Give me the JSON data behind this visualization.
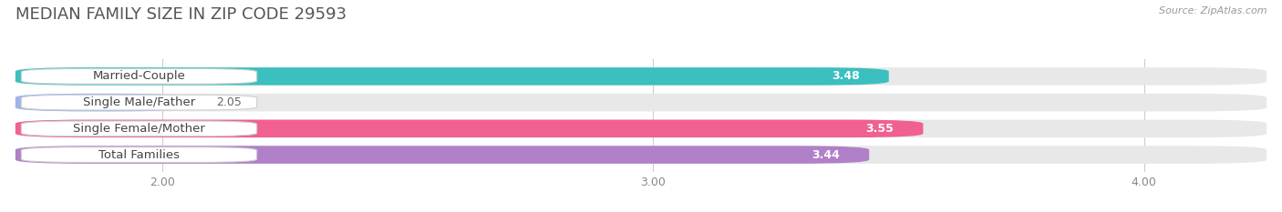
{
  "title": "MEDIAN FAMILY SIZE IN ZIP CODE 29593",
  "source": "Source: ZipAtlas.com",
  "categories": [
    "Married-Couple",
    "Single Male/Father",
    "Single Female/Mother",
    "Total Families"
  ],
  "values": [
    3.48,
    2.05,
    3.55,
    3.44
  ],
  "bar_colors": [
    "#3bbfbf",
    "#a0b4e8",
    "#f06090",
    "#b080c8"
  ],
  "xlim_min": 1.7,
  "xlim_max": 4.25,
  "xticks": [
    2.0,
    3.0,
    4.0
  ],
  "xtick_labels": [
    "2.00",
    "3.00",
    "4.00"
  ],
  "bar_height": 0.68,
  "bg_color": "#ffffff",
  "bar_bg_color": "#e8e8e8",
  "title_fontsize": 13,
  "label_fontsize": 9.5,
  "value_fontsize": 9,
  "source_fontsize": 8
}
